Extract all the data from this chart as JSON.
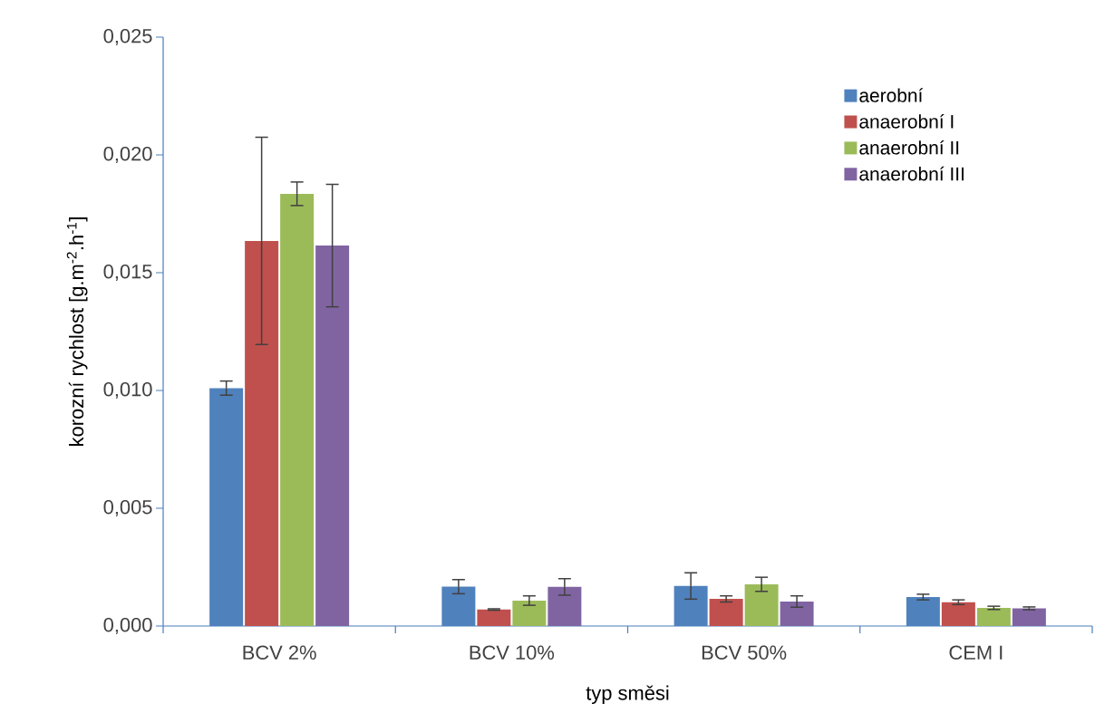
{
  "chart_data": {
    "type": "bar",
    "xlabel": "typ směsi",
    "ylabel": "korozní rychlost [g.m$^{-2}$.h$^{-1}$]",
    "categories": [
      "BCV 2%",
      "BCV 10%",
      "BCV 50%",
      "CEM I"
    ],
    "series": [
      {
        "name": "aerobní",
        "color": "#4f81bd",
        "values": [
          0.0101,
          0.00167,
          0.0017,
          0.00123
        ],
        "errors": [
          0.0003,
          0.0003,
          0.00056,
          0.00012
        ]
      },
      {
        "name": "anaerobní I",
        "color": "#c0504d",
        "values": [
          0.01635,
          0.0007,
          0.00115,
          0.00101
        ],
        "errors": [
          0.0044,
          3e-05,
          0.00013,
          0.0001
        ]
      },
      {
        "name": "anaerobní II",
        "color": "#9bbb59",
        "values": [
          0.01835,
          0.00108,
          0.00177,
          0.00077
        ],
        "errors": [
          0.0005,
          0.0002,
          0.0003,
          7e-05
        ]
      },
      {
        "name": "anaerobní III",
        "color": "#8064a2",
        "values": [
          0.01615,
          0.00166,
          0.00104,
          0.00075
        ],
        "errors": [
          0.0026,
          0.00035,
          0.00024,
          6e-05
        ]
      }
    ],
    "ylim": [
      0,
      0.025
    ],
    "yticks": [
      {
        "value": 0,
        "label": "0,000"
      },
      {
        "value": 0.005,
        "label": "0,005"
      },
      {
        "value": 0.01,
        "label": "0,010"
      },
      {
        "value": 0.015,
        "label": "0,015"
      },
      {
        "value": 0.02,
        "label": "0,020"
      },
      {
        "value": 0.025,
        "label": "0,025"
      }
    ],
    "legend": "top right",
    "grid": false
  }
}
